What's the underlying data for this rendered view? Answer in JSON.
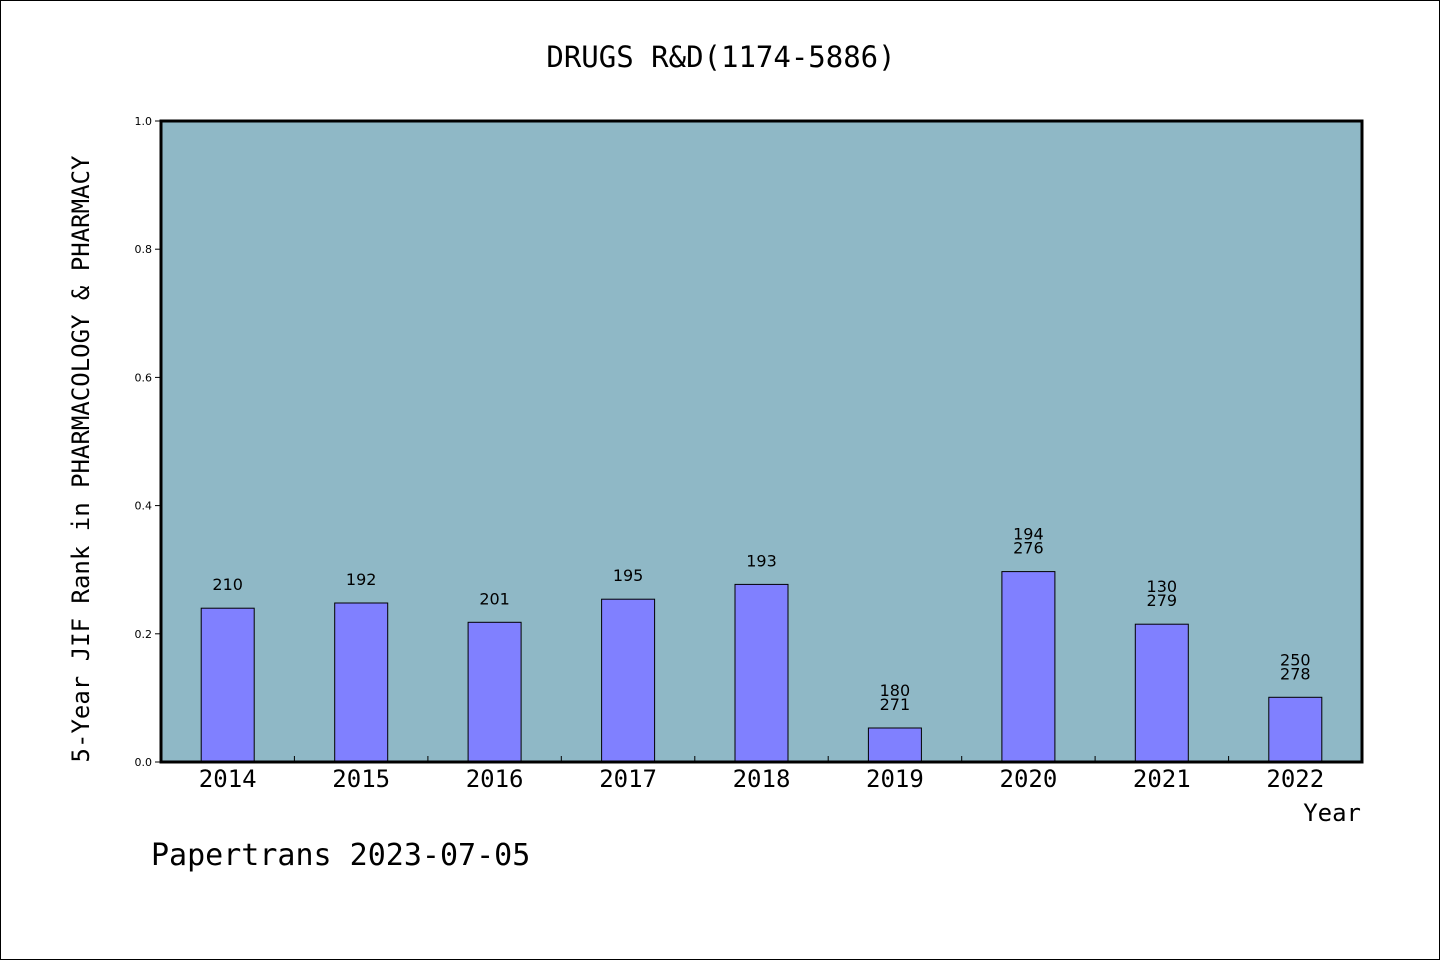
{
  "chart_data": {
    "type": "bar",
    "title": "DRUGS R&D(1174-5886)",
    "xlabel": "Year",
    "ylabel": "5-Year JIF Rank in PHARMACOLOGY & PHARMACY",
    "ylim": [
      0,
      1.0
    ],
    "yticks": [
      "0.0",
      "0.2",
      "0.4",
      "0.6",
      "0.8",
      "1.0"
    ],
    "grid": false,
    "categories": [
      "2014",
      "2015",
      "2016",
      "2017",
      "2018",
      "2019",
      "2020",
      "2021",
      "2022"
    ],
    "values": [
      0.24,
      0.248,
      0.218,
      0.254,
      0.277,
      0.053,
      0.297,
      0.215,
      0.101
    ],
    "annotations": [
      [
        "210"
      ],
      [
        "192"
      ],
      [
        "201"
      ],
      [
        "195"
      ],
      [
        "193"
      ],
      [
        "180",
        "271"
      ],
      [
        "194",
        "276"
      ],
      [
        "130",
        "279"
      ],
      [
        "250",
        "278"
      ]
    ],
    "colors": {
      "plot_background": "#8fb8c6",
      "bar": "#8080ff",
      "axis": "#000000"
    }
  },
  "footer": "Papertrans 2023-07-05"
}
